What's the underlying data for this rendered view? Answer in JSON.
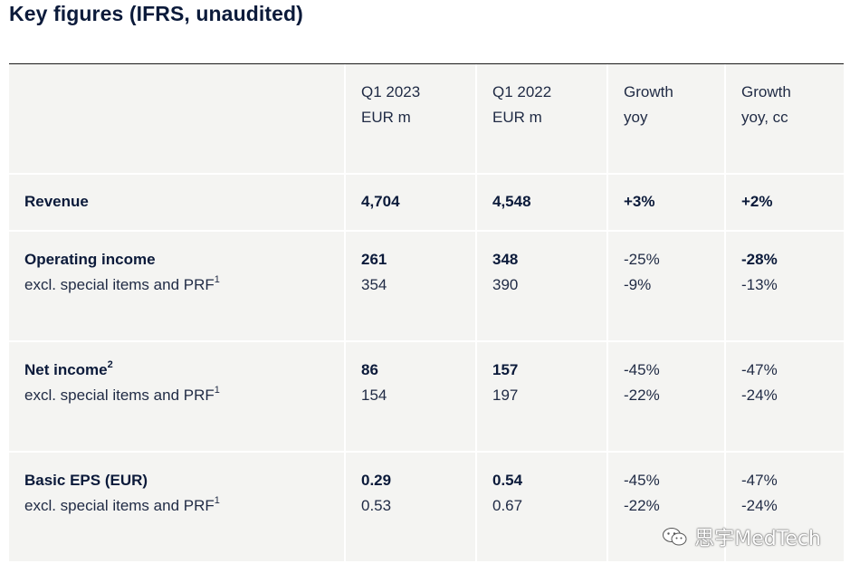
{
  "title": "Key figures (IFRS, unaudited)",
  "headers": {
    "col_q1_2023": {
      "line1": "Q1 2023",
      "line2": "EUR m"
    },
    "col_q1_2022": {
      "line1": "Q1 2022",
      "line2": "EUR m"
    },
    "col_growth": {
      "line1": "Growth",
      "line2": "yoy"
    },
    "col_growth_cc": {
      "line1": "Growth",
      "line2": "yoy, cc"
    }
  },
  "rows": [
    {
      "label": "Revenue",
      "q1_2023": "4,704",
      "q1_2022": "4,548",
      "growth": "+3%",
      "growth_cc": "+2%"
    },
    {
      "label": "Operating income",
      "sub_label": "excl. special items and PRF",
      "sub_sup": "1",
      "q1_2023": "261",
      "q1_2023_sub": "354",
      "q1_2022": "348",
      "q1_2022_sub": "390",
      "growth": "-25%",
      "growth_sub": "-9%",
      "growth_cc": "-28%",
      "growth_cc_sub": "-13%"
    },
    {
      "label": "Net income",
      "label_sup": "2",
      "sub_label": "excl. special items and PRF",
      "sub_sup": "1",
      "q1_2023": "86",
      "q1_2023_sub": "154",
      "q1_2022": "157",
      "q1_2022_sub": "197",
      "growth": "-45%",
      "growth_sub": "-22%",
      "growth_cc": "-47%",
      "growth_cc_sub": "-24%"
    },
    {
      "label": "Basic EPS (EUR)",
      "sub_label": "excl. special items and PRF",
      "sub_sup": "1",
      "q1_2023": "0.29",
      "q1_2023_sub": "0.53",
      "q1_2022": "0.54",
      "q1_2022_sub": "0.67",
      "growth": "-45%",
      "growth_sub": "-22%",
      "growth_cc": "-47%",
      "growth_cc_sub": "-24%"
    }
  ],
  "watermark": {
    "icon": "wechat-icon",
    "text": "思宇MedTech"
  }
}
